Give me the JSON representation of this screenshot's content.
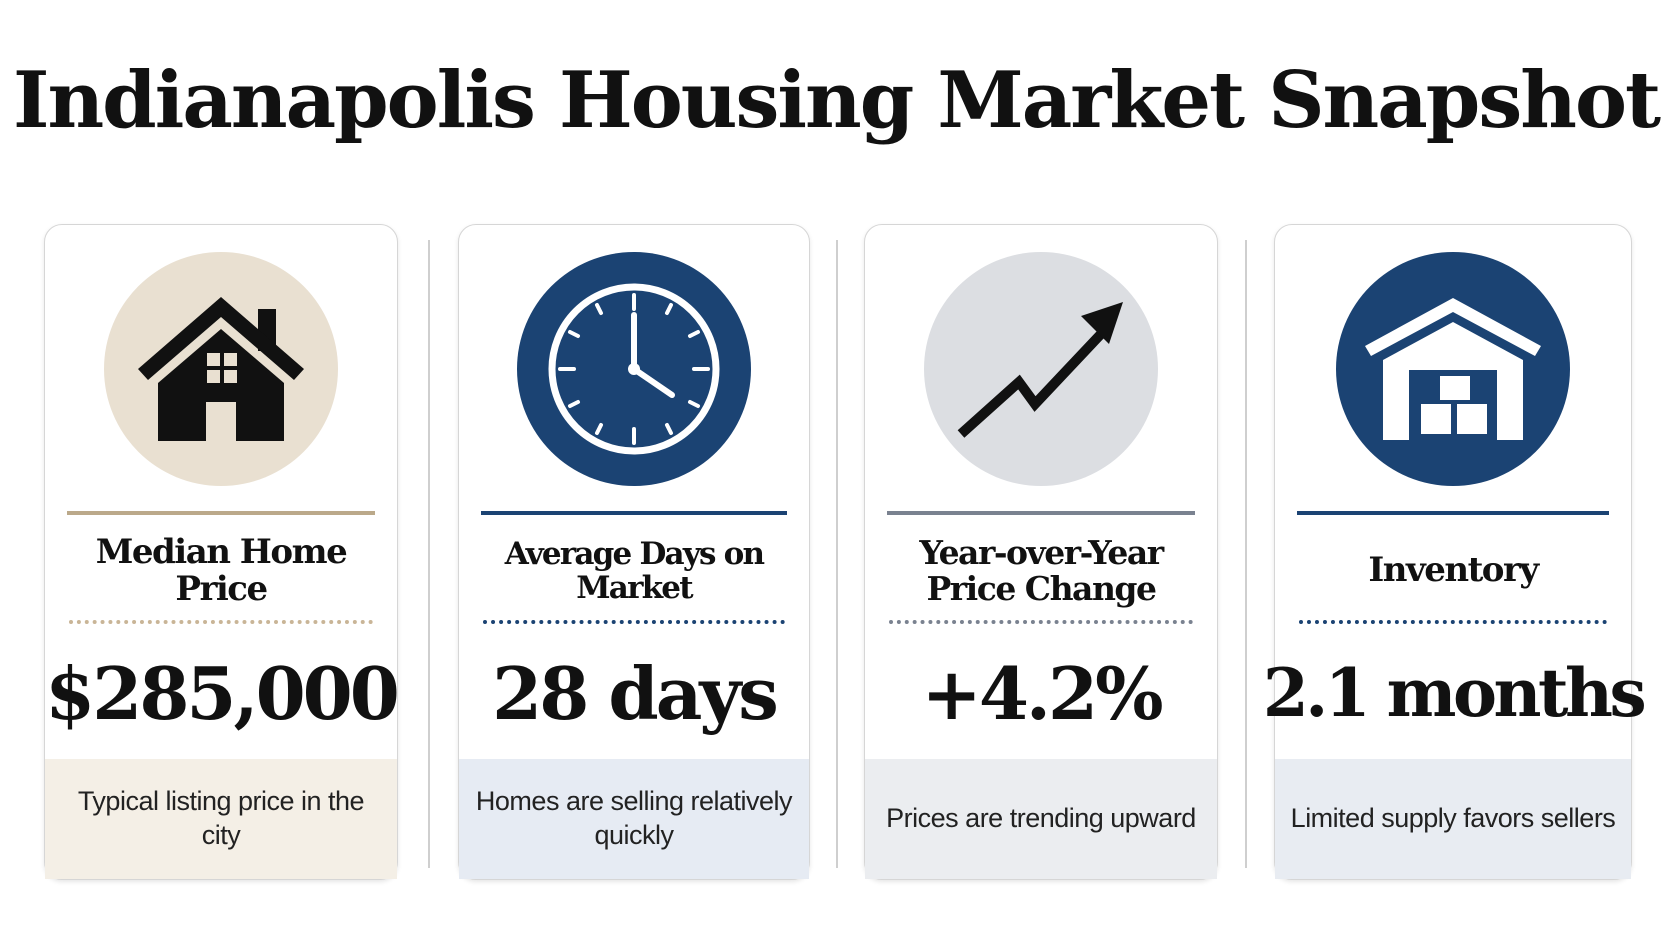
{
  "title": "Indianapolis Housing Market Snapshot",
  "cards": [
    {
      "icon": "house-icon",
      "label": "Median Home Price",
      "value": "$285,000",
      "description": "Typical listing price in the city"
    },
    {
      "icon": "clock-icon",
      "label": "Average Days on Market",
      "value": "28 days",
      "description": "Homes are selling relatively quickly"
    },
    {
      "icon": "trend-up-arrow-icon",
      "label": "Year-over-Year Price Change",
      "value": "+4.2%",
      "description": "Prices are trending upward"
    },
    {
      "icon": "warehouse-icon",
      "label": "Inventory",
      "value": "2.1 months",
      "description": "Limited supply favors sellers"
    }
  ],
  "colors": {
    "navy": "#1b4373",
    "beige": "#e9e0d1",
    "tan_rule": "#bba98a",
    "light_gray": "#dcdee2",
    "slate": "#7a8290",
    "text": "#111111"
  }
}
